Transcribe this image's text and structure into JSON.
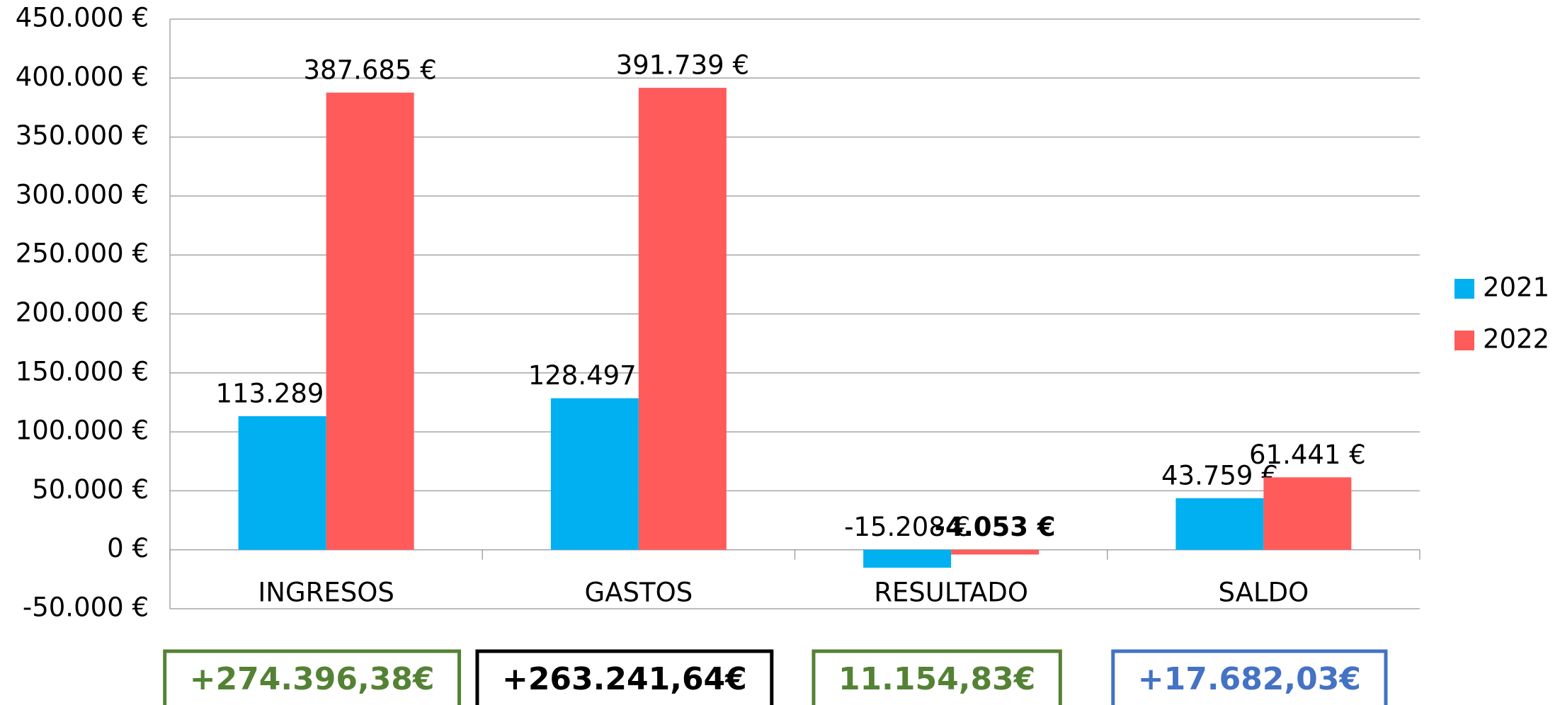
{
  "chart_data": {
    "type": "bar",
    "categories": [
      "INGRESOS",
      "GASTOS",
      "RESULTADO",
      "SALDO"
    ],
    "series": [
      {
        "name": "2021",
        "color": "#00b0f0",
        "values": [
          113289,
          128497,
          -15208,
          43759
        ],
        "value_labels": [
          "113.289 €",
          "128.497 €",
          "-15.208 €",
          "43.759 €"
        ]
      },
      {
        "name": "2022",
        "color": "#ff5b5b",
        "values": [
          387685,
          391739,
          -4053,
          61441
        ],
        "value_labels": [
          "387.685 €",
          "391.739 €",
          "-4.053 €",
          "61.441 €"
        ]
      }
    ],
    "ylim": [
      -50000,
      450000
    ],
    "yticks": [
      {
        "value": -50000,
        "label": "-50.000 €"
      },
      {
        "value": 0,
        "label": "0 €"
      },
      {
        "value": 50000,
        "label": "50.000 €"
      },
      {
        "value": 100000,
        "label": "100.000 €"
      },
      {
        "value": 150000,
        "label": "150.000 €"
      },
      {
        "value": 200000,
        "label": "200.000 €"
      },
      {
        "value": 250000,
        "label": "250.000 €"
      },
      {
        "value": 300000,
        "label": "300.000 €"
      },
      {
        "value": 350000,
        "label": "350.000 €"
      },
      {
        "value": 400000,
        "label": "400.000 €"
      },
      {
        "value": 450000,
        "label": "450.000 €"
      }
    ],
    "grid": true,
    "legend": "right",
    "annotations": [
      {
        "text": "+274.396,38€",
        "color": "#548235"
      },
      {
        "text": "+263.241,64€",
        "color": "#000000"
      },
      {
        "text": "11.154,83€",
        "color": "#548235"
      },
      {
        "text": "+17.682,03€",
        "color": "#4472c4"
      }
    ]
  }
}
